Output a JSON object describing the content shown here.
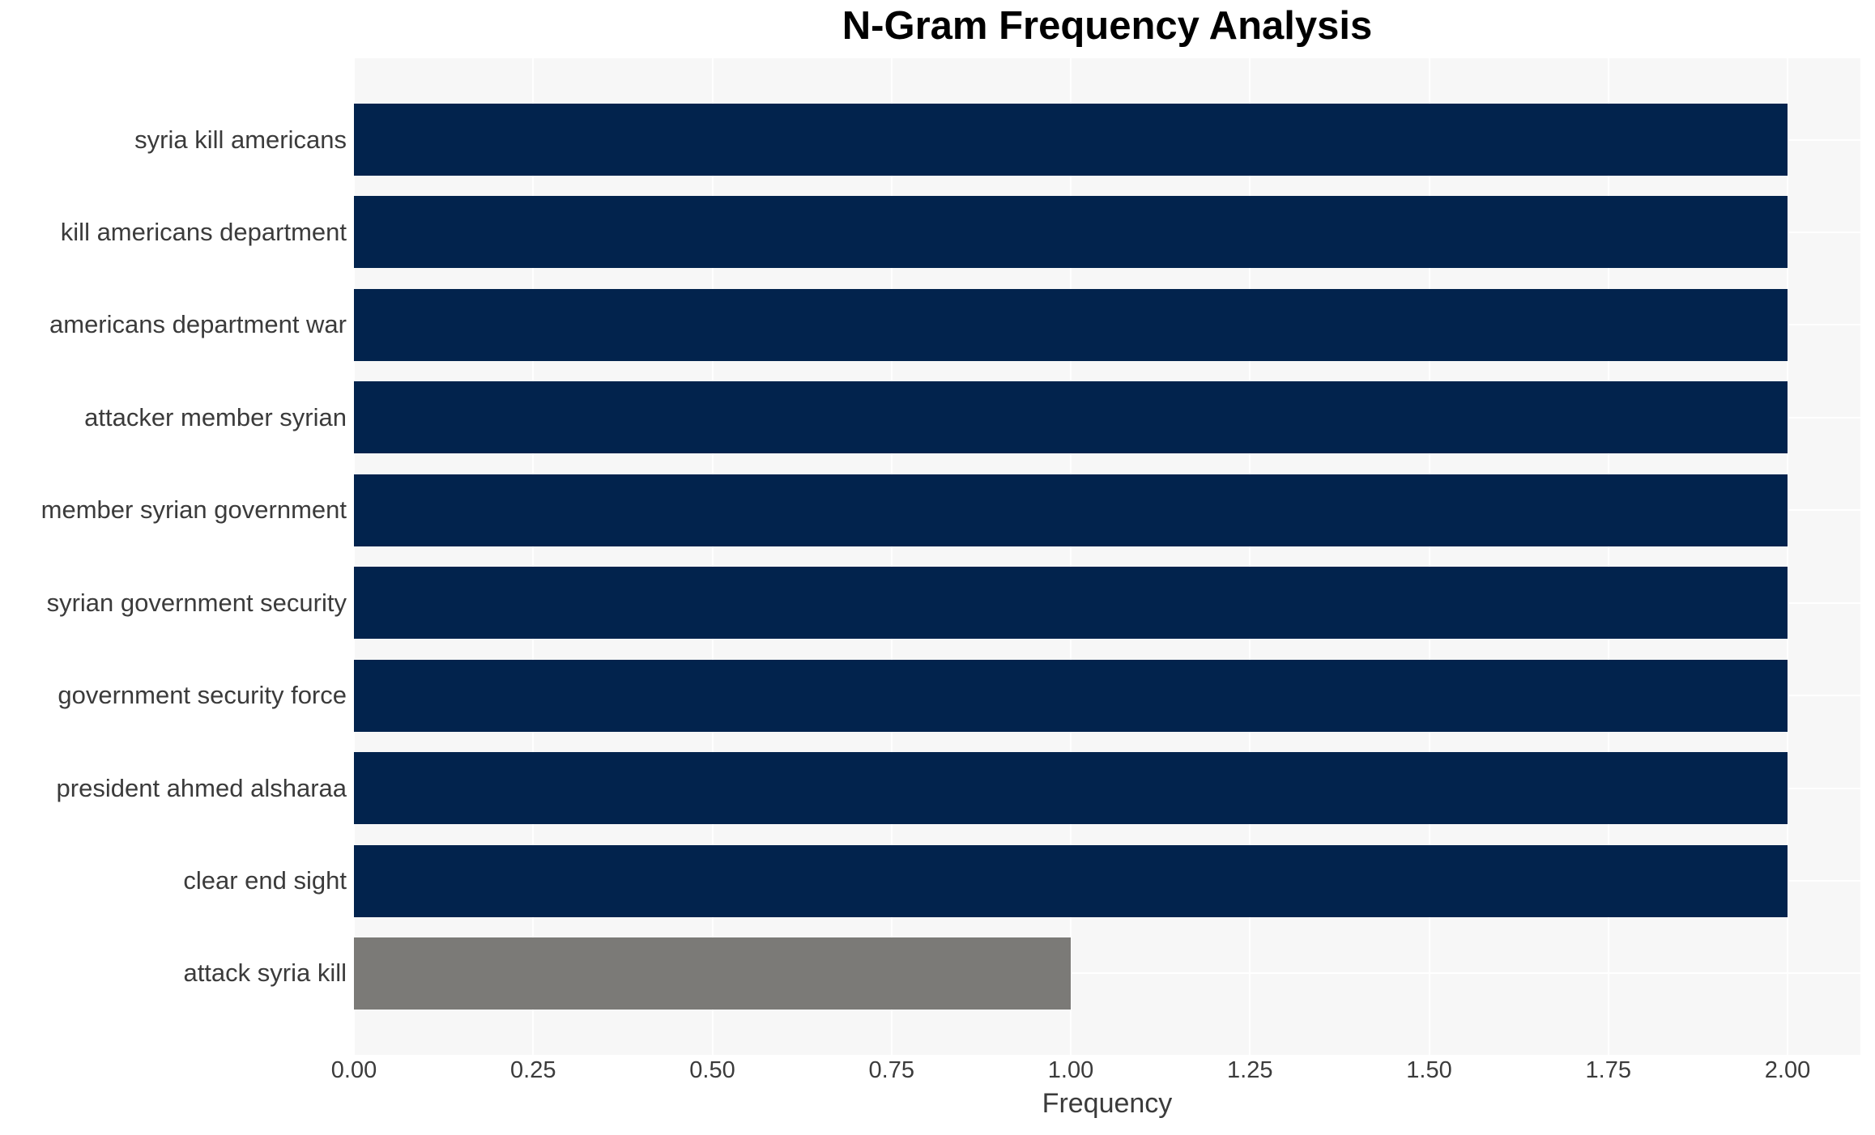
{
  "chart_data": {
    "type": "bar",
    "orientation": "horizontal",
    "title": "N-Gram Frequency Analysis",
    "xlabel": "Frequency",
    "ylabel": "",
    "categories": [
      "syria kill americans",
      "kill americans department",
      "americans department war",
      "attacker member syrian",
      "member syrian government",
      "syrian government security",
      "government security force",
      "president ahmed alsharaa",
      "clear end sight",
      "attack syria kill"
    ],
    "values": [
      2,
      2,
      2,
      2,
      2,
      2,
      2,
      2,
      2,
      1
    ],
    "bar_colors": [
      "#02234d",
      "#02234d",
      "#02234d",
      "#02234d",
      "#02234d",
      "#02234d",
      "#02234d",
      "#02234d",
      "#02234d",
      "#7b7a77"
    ],
    "xlim": [
      0,
      2.102
    ],
    "xticks": {
      "values": [
        0,
        0.25,
        0.5,
        0.75,
        1.0,
        1.25,
        1.5,
        1.75,
        2.0
      ],
      "labels": [
        "0.00",
        "0.25",
        "0.50",
        "0.75",
        "1.00",
        "1.25",
        "1.50",
        "1.75",
        "2.00"
      ]
    },
    "grid": true,
    "legend": false,
    "colors": {
      "plot_background": "#f7f7f7",
      "gridline": "#ffffff",
      "bar_navy": "#02234d",
      "bar_gray": "#7b7a77",
      "text": "#3b3b3b",
      "title_text": "#000000"
    }
  }
}
